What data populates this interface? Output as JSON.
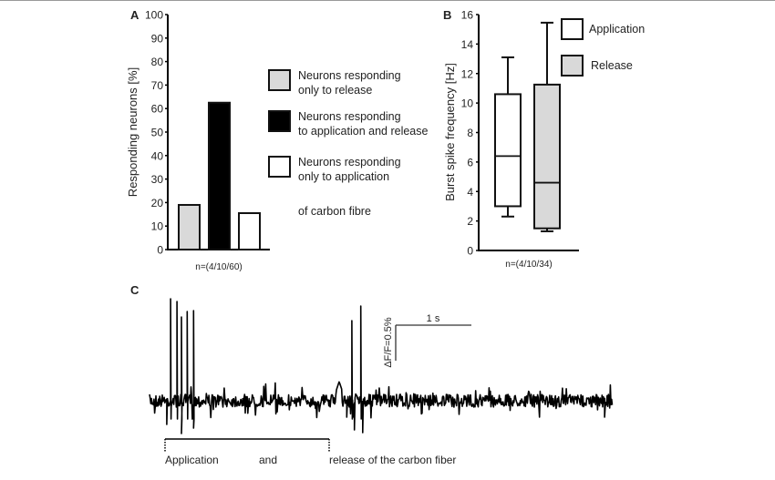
{
  "panel_labels": {
    "a": "A",
    "b": "B",
    "c": "C"
  },
  "chart_data": [
    {
      "type": "bar",
      "panel": "A",
      "ylabel": "Responding neurons [%]",
      "xlabel": "n=(4/10/60)",
      "ylim": [
        0,
        100
      ],
      "yticks": [
        0,
        10,
        20,
        30,
        40,
        50,
        60,
        70,
        80,
        90,
        100
      ],
      "categories": [
        "Neurons responding only to release",
        "Neurons responding to application and  release",
        "Neurons responding only to application of carbon fibre"
      ],
      "values": [
        19,
        62.5,
        15.5
      ],
      "colors": [
        "#d9d9d9",
        "#000000",
        "#ffffff"
      ],
      "legend": [
        {
          "lines": [
            "Neurons responding",
            "only to release"
          ],
          "color": "#d9d9d9"
        },
        {
          "lines": [
            "Neurons responding",
            "to application and  release"
          ],
          "color": "#000000"
        },
        {
          "lines": [
            "Neurons responding",
            "only to application",
            "of carbon fibre"
          ],
          "color": "#ffffff"
        }
      ],
      "legend_position": "right"
    },
    {
      "type": "box",
      "panel": "B",
      "ylabel": "Burst spike  frequency [Hz]",
      "xlabel": "n=(4/10/34)",
      "ylim": [
        0,
        16
      ],
      "yticks": [
        0,
        2,
        4,
        6,
        8,
        10,
        12,
        14,
        16
      ],
      "series": [
        {
          "name": "Application",
          "min": 2.3,
          "q1": 3.0,
          "median": 6.4,
          "q3": 10.6,
          "max": 13.1,
          "color": "#ffffff"
        },
        {
          "name": "Release",
          "min": 1.3,
          "q1": 1.5,
          "median": 4.6,
          "q3": 11.25,
          "max": 15.45,
          "color": "#d9d9d9"
        }
      ],
      "legend_position": "top-right"
    },
    {
      "type": "line",
      "panel": "C",
      "scale_bar": {
        "time": "1 s",
        "amplitude": "ΔF/F=0.5%"
      },
      "annotation": {
        "start": "Application",
        "middle": "and",
        "end": "release of the carbon fiber"
      }
    }
  ]
}
